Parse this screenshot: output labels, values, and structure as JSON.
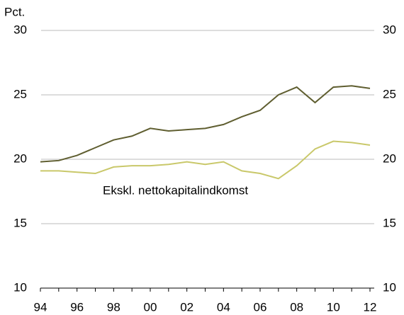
{
  "chart_data": {
    "type": "line",
    "y_label": "Pct.",
    "annotation": "Ekskl. nettokapitalindkomst",
    "categories": [
      "94",
      null,
      "96",
      null,
      "98",
      null,
      "00",
      null,
      "02",
      null,
      "04",
      null,
      "06",
      null,
      "08",
      null,
      "10",
      null,
      "12"
    ],
    "series": [
      {
        "color": "#5f5e30",
        "values": [
          19.8,
          19.9,
          20.3,
          20.9,
          21.5,
          21.8,
          22.4,
          22.2,
          22.3,
          22.4,
          22.7,
          23.3,
          23.8,
          25.0,
          25.6,
          24.4,
          25.6,
          25.7,
          25.5
        ]
      },
      {
        "name": "Ekskl. nettokapitalindkomst",
        "color": "#c9c86a",
        "values": [
          19.1,
          19.1,
          19.0,
          18.9,
          19.4,
          19.5,
          19.5,
          19.6,
          19.8,
          19.6,
          19.8,
          19.1,
          18.9,
          18.5,
          19.5,
          20.8,
          21.4,
          21.3,
          21.1
        ]
      }
    ],
    "ylim": [
      10,
      30
    ],
    "yticks": [
      10,
      15,
      20,
      25,
      30
    ],
    "grid": true
  }
}
